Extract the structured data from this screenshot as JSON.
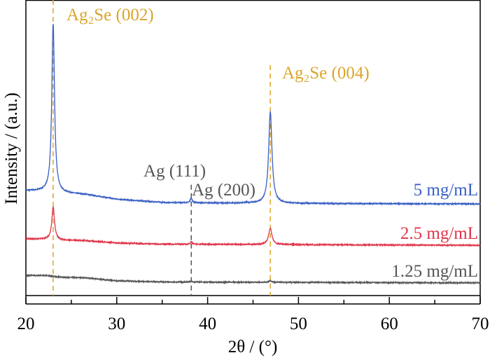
{
  "chart_data": {
    "type": "line",
    "title": "",
    "xlabel": "2θ / (°)",
    "ylabel": "Intensity / (a.u.)",
    "xlim": [
      20,
      70
    ],
    "ylim": [
      0,
      100
    ],
    "xticks": [
      20,
      30,
      40,
      50,
      60,
      70
    ],
    "xticks_minor": [
      25,
      35,
      45,
      55,
      65
    ],
    "grid": false,
    "series": [
      {
        "name": "5 mg/mL",
        "color": "#3a5fc4",
        "baseline": [
          [
            20,
            35.5
          ],
          [
            22,
            35.3
          ],
          [
            24,
            34.6
          ],
          [
            26.5,
            34.2
          ],
          [
            30,
            32.6
          ],
          [
            35,
            31.5
          ],
          [
            45,
            31.2
          ],
          [
            70,
            31.0
          ]
        ],
        "peaks": [
          [
            23.0,
            57,
            0.18
          ],
          [
            46.9,
            31,
            0.22
          ],
          [
            38.2,
            1.6,
            0.12
          ],
          [
            44.3,
            0.4,
            0.1
          ]
        ]
      },
      {
        "name": "2.5 mg/mL",
        "color": "#e0354b",
        "baseline": [
          [
            20,
            19.2
          ],
          [
            22,
            19.1
          ],
          [
            24,
            18.7
          ],
          [
            26.5,
            18.6
          ],
          [
            30,
            17.8
          ],
          [
            35,
            17.4
          ],
          [
            70,
            17.0
          ]
        ],
        "peaks": [
          [
            23.0,
            11,
            0.18
          ],
          [
            46.9,
            5.5,
            0.22
          ],
          [
            38.2,
            0.8,
            0.12
          ]
        ]
      },
      {
        "name": "1.25 mg/mL",
        "color": "#555555",
        "baseline": [
          [
            20,
            6.8
          ],
          [
            22,
            6.8
          ],
          [
            24,
            6.2
          ],
          [
            26.5,
            6.0
          ],
          [
            30,
            5.0
          ],
          [
            35,
            4.6
          ],
          [
            70,
            4.3
          ]
        ],
        "peaks": [
          [
            46.9,
            0.5,
            0.2
          ],
          [
            38.2,
            0.3,
            0.12
          ]
        ]
      }
    ],
    "reference_lines": [
      {
        "x": 23.0,
        "label": "Ag₂Se (002)",
        "color": "#dba52a",
        "top": 100
      },
      {
        "x": 46.9,
        "label": "Ag₂Se (004)",
        "color": "#dba52a",
        "top": 78
      },
      {
        "x": 38.2,
        "label": "Ag (111)",
        "color": "#555555",
        "top": 37.5
      }
    ],
    "annotations": [
      {
        "text": "Ag₂Se (002)",
        "color": "#dba52a"
      },
      {
        "text": "Ag₂Se (004)",
        "color": "#dba52a"
      },
      {
        "text": "Ag (111)",
        "color": "#555555"
      },
      {
        "text": "Ag (200)",
        "color": "#555555"
      }
    ]
  }
}
